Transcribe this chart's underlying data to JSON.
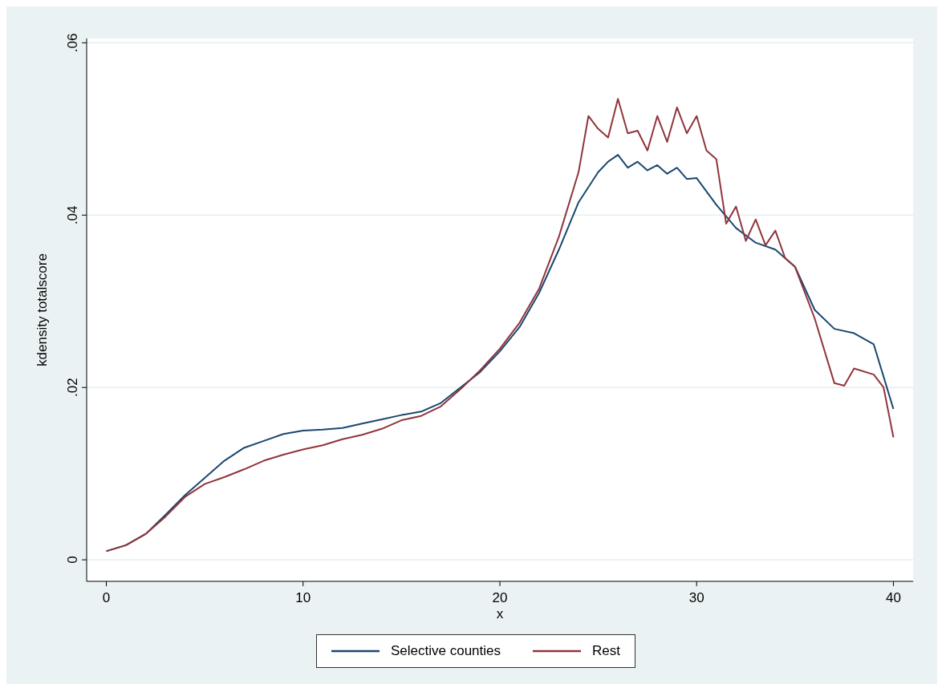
{
  "chart_data": {
    "type": "line",
    "xlabel": "x",
    "ylabel": "kdensity totalscore",
    "xlim": [
      -1,
      41
    ],
    "xticks": [
      0,
      10,
      20,
      30,
      40
    ],
    "ylim": [
      -0.0025,
      0.0605
    ],
    "yticks": [
      {
        "value": 0,
        "label": "0"
      },
      {
        "value": 0.02,
        "label": ".02"
      },
      {
        "value": 0.04,
        "label": ".04"
      },
      {
        "value": 0.06,
        "label": ".06"
      }
    ],
    "grid": "y",
    "legend": "bottom",
    "line_style": "solid",
    "marker": "none",
    "series": [
      {
        "name": "Selective counties",
        "color": "#1a476f",
        "x": [
          0,
          1,
          2,
          3,
          4,
          5,
          6,
          7,
          8,
          9,
          10,
          11,
          12,
          13,
          14,
          15,
          16,
          17,
          18,
          19,
          20,
          21,
          22,
          23,
          24,
          25,
          25.5,
          26,
          26.5,
          27,
          27.5,
          28,
          28.5,
          29,
          29.5,
          30,
          31,
          32,
          33,
          34,
          35,
          36,
          37,
          38,
          39,
          40
        ],
        "values": [
          0.001,
          0.0017,
          0.003,
          0.0052,
          0.0075,
          0.0095,
          0.0115,
          0.013,
          0.0138,
          0.0146,
          0.015,
          0.0151,
          0.0153,
          0.0158,
          0.0163,
          0.0168,
          0.0172,
          0.0182,
          0.02,
          0.0218,
          0.0242,
          0.027,
          0.031,
          0.036,
          0.0415,
          0.045,
          0.0462,
          0.047,
          0.0455,
          0.0462,
          0.0452,
          0.0458,
          0.0448,
          0.0455,
          0.0442,
          0.0443,
          0.0412,
          0.0385,
          0.0368,
          0.036,
          0.034,
          0.029,
          0.0268,
          0.0263,
          0.025,
          0.0175
        ]
      },
      {
        "name": "Rest",
        "color": "#90353b",
        "x": [
          0,
          1,
          2,
          3,
          4,
          5,
          6,
          7,
          8,
          9,
          10,
          11,
          12,
          13,
          14,
          15,
          16,
          17,
          18,
          19,
          20,
          21,
          22,
          23,
          24,
          24.5,
          25,
          25.5,
          26,
          26.5,
          27,
          27.5,
          28,
          28.5,
          29,
          29.5,
          30,
          30.5,
          31,
          31.5,
          32,
          32.5,
          33,
          33.5,
          34,
          34.5,
          35,
          36,
          37,
          37.5,
          38,
          39,
          39.5,
          40
        ],
        "values": [
          0.001,
          0.0017,
          0.003,
          0.005,
          0.0073,
          0.0088,
          0.0096,
          0.0105,
          0.0115,
          0.0122,
          0.0128,
          0.0133,
          0.014,
          0.0145,
          0.0152,
          0.0162,
          0.0167,
          0.0178,
          0.0198,
          0.022,
          0.0245,
          0.0275,
          0.0315,
          0.0375,
          0.045,
          0.0515,
          0.05,
          0.049,
          0.0535,
          0.0495,
          0.0498,
          0.0475,
          0.0515,
          0.0485,
          0.0525,
          0.0495,
          0.0515,
          0.0475,
          0.0465,
          0.039,
          0.041,
          0.037,
          0.0395,
          0.0365,
          0.0382,
          0.035,
          0.034,
          0.028,
          0.0205,
          0.0202,
          0.0222,
          0.0215,
          0.02,
          0.0142
        ]
      }
    ]
  }
}
